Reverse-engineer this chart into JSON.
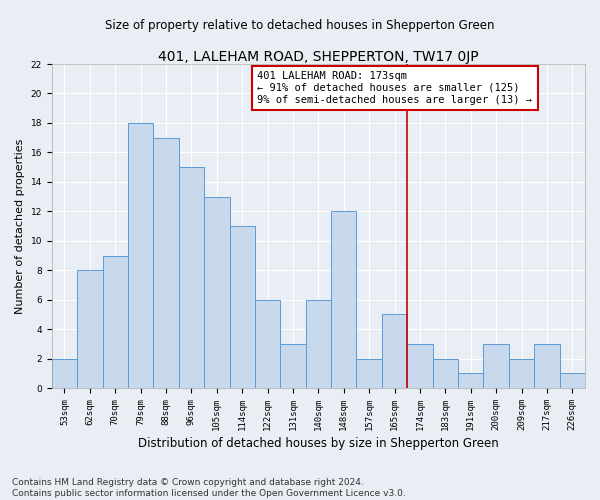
{
  "title": "401, LALEHAM ROAD, SHEPPERTON, TW17 0JP",
  "subtitle": "Size of property relative to detached houses in Shepperton Green",
  "xlabel": "Distribution of detached houses by size in Shepperton Green",
  "ylabel": "Number of detached properties",
  "bar_labels": [
    "53sqm",
    "62sqm",
    "70sqm",
    "79sqm",
    "88sqm",
    "96sqm",
    "105sqm",
    "114sqm",
    "122sqm",
    "131sqm",
    "140sqm",
    "148sqm",
    "157sqm",
    "165sqm",
    "174sqm",
    "183sqm",
    "191sqm",
    "200sqm",
    "209sqm",
    "217sqm",
    "226sqm"
  ],
  "bar_values": [
    2,
    8,
    9,
    18,
    17,
    15,
    13,
    11,
    6,
    3,
    6,
    12,
    2,
    5,
    3,
    2,
    1,
    3,
    2,
    3,
    1
  ],
  "bar_color": "#c8d9ed",
  "bar_edge_color": "#5b9bd5",
  "vline_x": 13.5,
  "vline_color": "#cc0000",
  "annotation_text": "401 LALEHAM ROAD: 173sqm\n← 91% of detached houses are smaller (125)\n9% of semi-detached houses are larger (13) →",
  "annotation_box_color": "#ffffff",
  "annotation_box_edge": "#cc0000",
  "ylim": [
    0,
    22
  ],
  "yticks": [
    0,
    2,
    4,
    6,
    8,
    10,
    12,
    14,
    16,
    18,
    20,
    22
  ],
  "footnote": "Contains HM Land Registry data © Crown copyright and database right 2024.\nContains public sector information licensed under the Open Government Licence v3.0.",
  "bg_color": "#e8eef4",
  "grid_color": "#ffffff",
  "title_fontsize": 10,
  "subtitle_fontsize": 8.5,
  "xlabel_fontsize": 8.5,
  "ylabel_fontsize": 8,
  "tick_fontsize": 6.5,
  "annotation_fontsize": 7.5,
  "footnote_fontsize": 6.5
}
